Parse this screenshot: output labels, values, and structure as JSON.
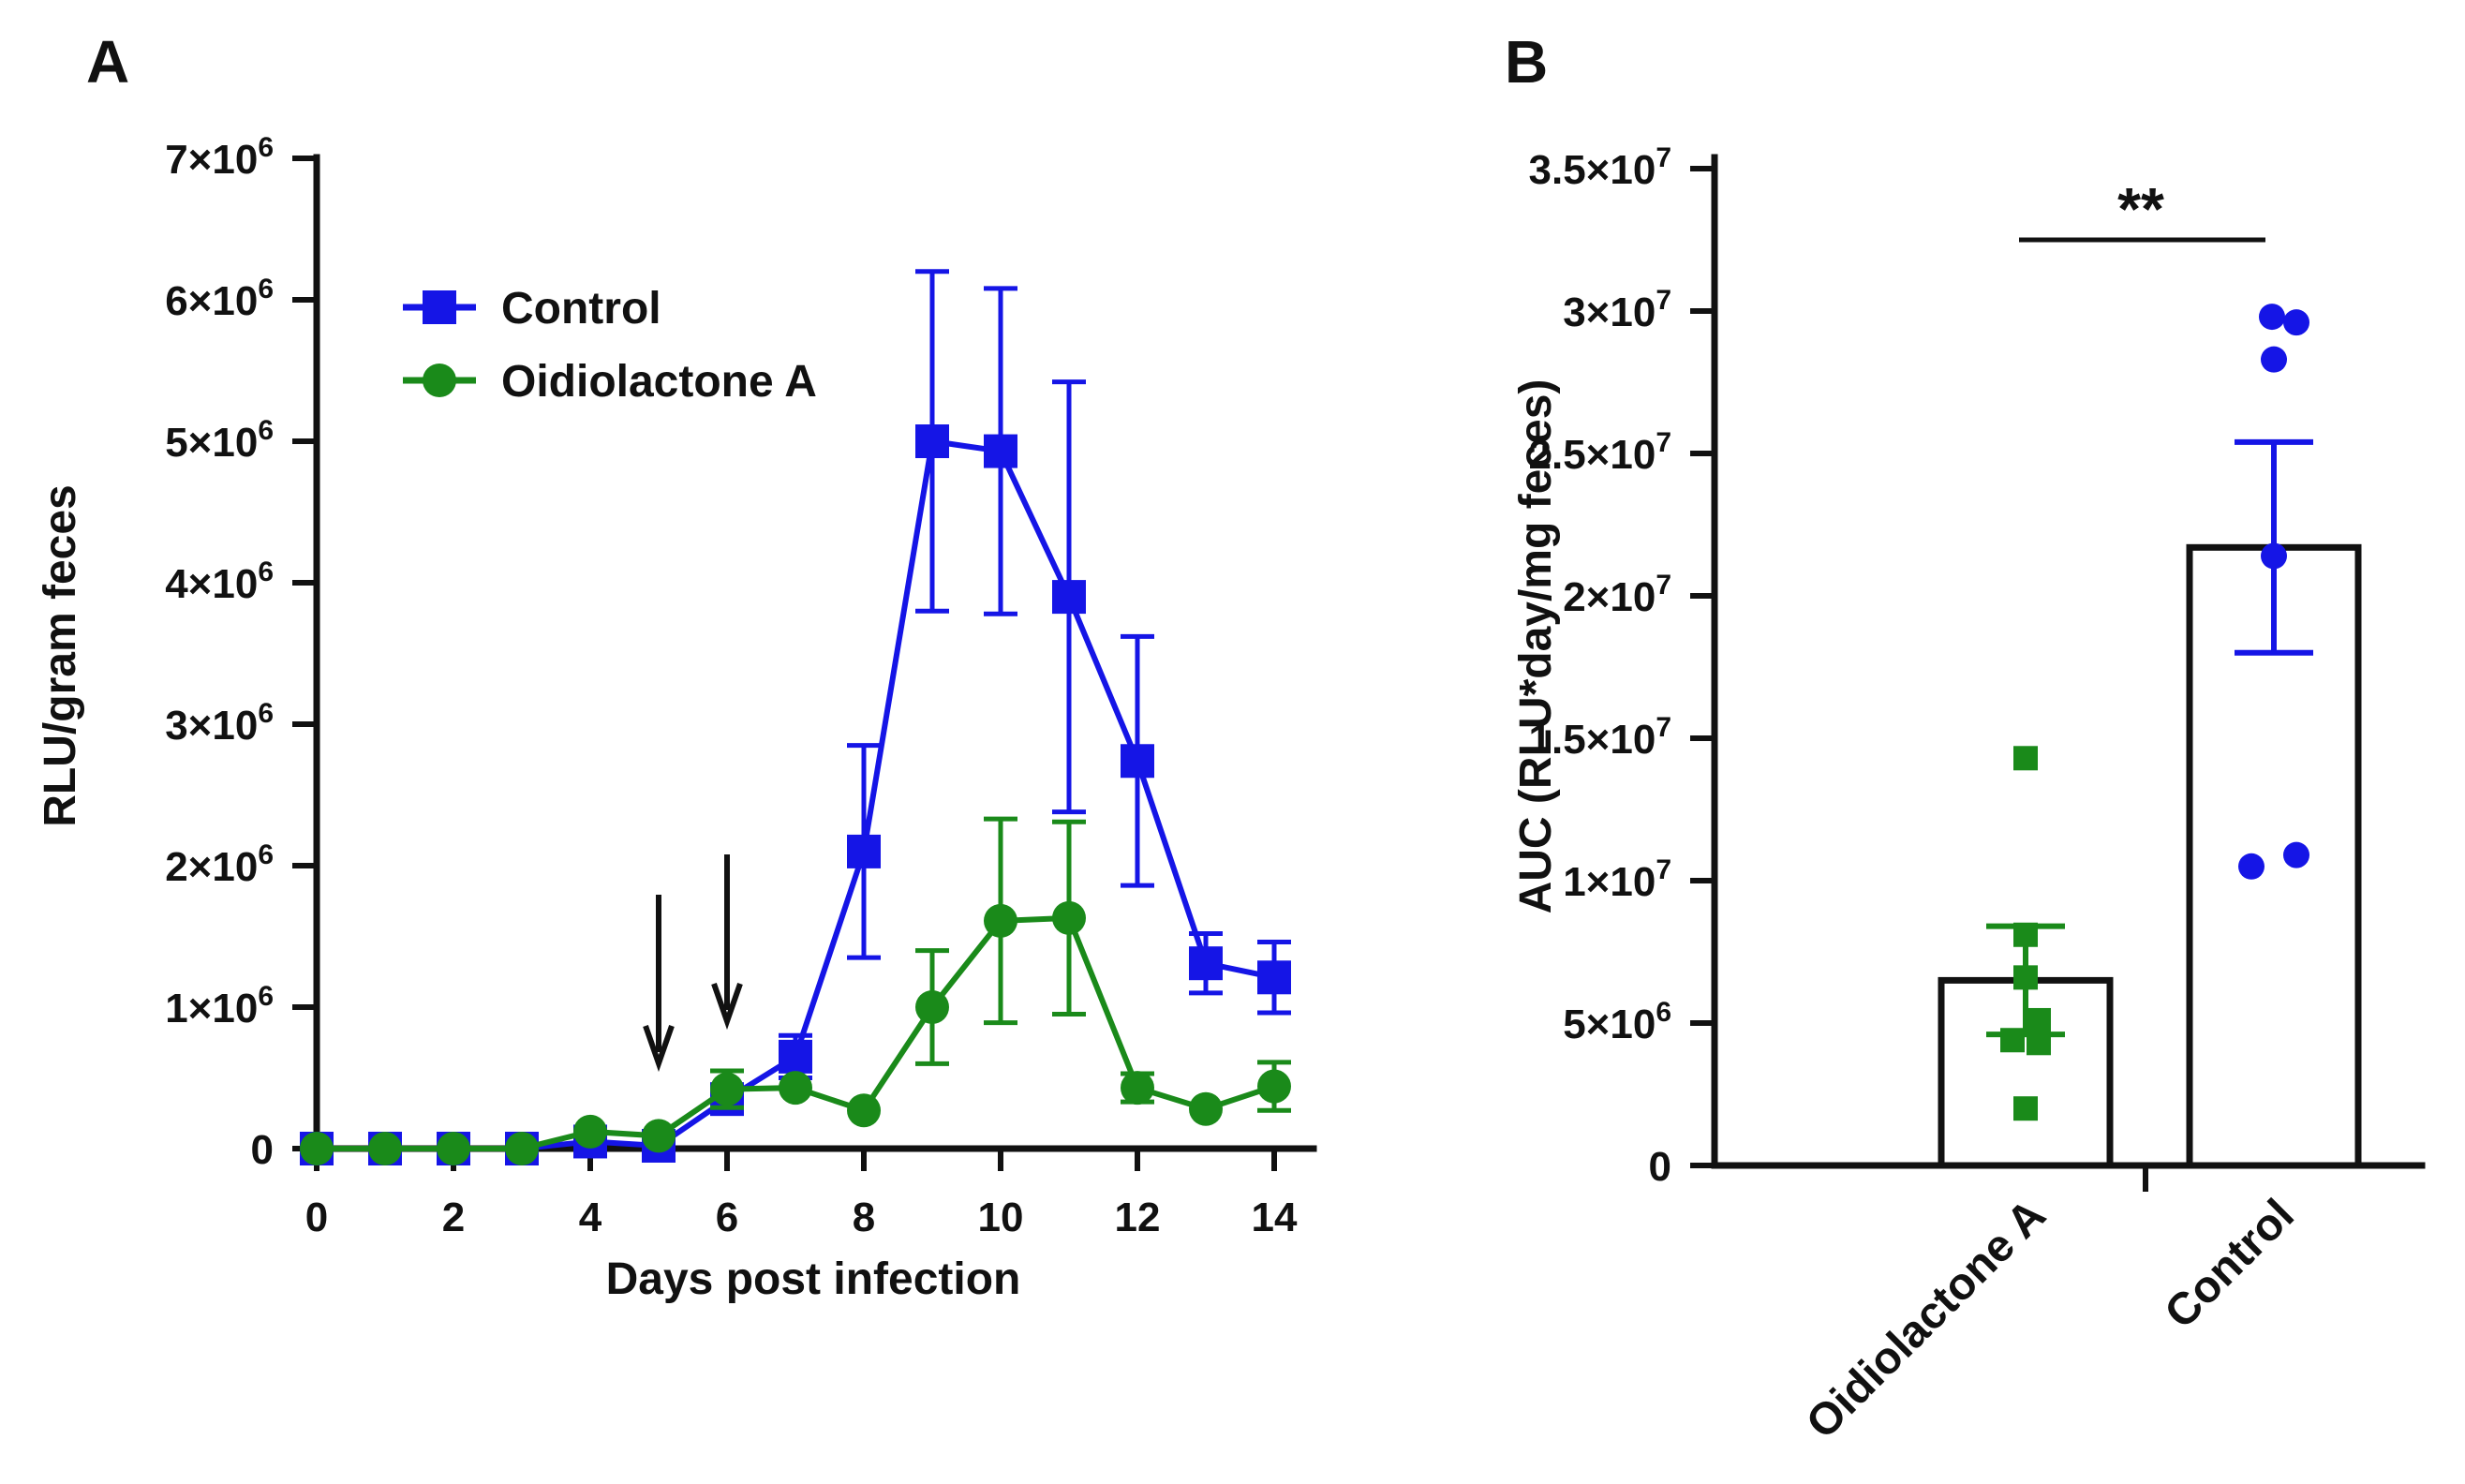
{
  "panels": {
    "a": {
      "letter": "A"
    },
    "b": {
      "letter": "B"
    }
  },
  "chart_data": [
    {
      "id": "A",
      "type": "line",
      "xlabel": "Days post infection",
      "ylabel": "RLU/gram feces",
      "xlim": [
        0,
        14
      ],
      "ylim": [
        0,
        7000000
      ],
      "xticks": [
        0,
        2,
        4,
        6,
        8,
        10,
        12,
        14
      ],
      "yticks": [
        {
          "value": 0,
          "label": "0"
        },
        {
          "value": 1000000,
          "base": "1×10",
          "exp": "6"
        },
        {
          "value": 2000000,
          "base": "2×10",
          "exp": "6"
        },
        {
          "value": 3000000,
          "base": "3×10",
          "exp": "6"
        },
        {
          "value": 4000000,
          "base": "4×10",
          "exp": "6"
        },
        {
          "value": 5000000,
          "base": "5×10",
          "exp": "6"
        },
        {
          "value": 6000000,
          "base": "6×10",
          "exp": "6"
        },
        {
          "value": 7000000,
          "base": "7×10",
          "exp": "6"
        }
      ],
      "grid": false,
      "legend_position": "top-left",
      "arrows_at_days": [
        5,
        6
      ],
      "series": [
        {
          "name": "Control",
          "color": "#1515e6",
          "marker": "square",
          "x": [
            0,
            1,
            2,
            3,
            4,
            5,
            6,
            7,
            8,
            9,
            10,
            11,
            12,
            13,
            14
          ],
          "y": [
            0,
            0,
            0,
            0,
            50000,
            20000,
            350000,
            650000,
            2100000,
            5000000,
            4930000,
            3900000,
            2740000,
            1310000,
            1210000
          ],
          "err": [
            0,
            0,
            0,
            0,
            0,
            0,
            0,
            150000,
            750000,
            1200000,
            1150000,
            1520000,
            880000,
            210000,
            250000
          ]
        },
        {
          "name": "Oidiolactone A",
          "color": "#1a8a1a",
          "marker": "circle",
          "x": [
            0,
            1,
            2,
            3,
            4,
            5,
            6,
            7,
            8,
            9,
            10,
            11,
            12,
            13,
            14
          ],
          "y": [
            0,
            0,
            0,
            0,
            120000,
            90000,
            420000,
            430000,
            270000,
            1000000,
            1610000,
            1630000,
            430000,
            280000,
            440000
          ],
          "err": [
            0,
            0,
            0,
            0,
            0,
            0,
            130000,
            0,
            0,
            400000,
            720000,
            680000,
            100000,
            0,
            170000
          ]
        }
      ]
    },
    {
      "id": "B",
      "type": "bar",
      "ylabel": "AUC (RLU*day/mg feces)",
      "ylim": [
        0,
        35000000
      ],
      "yticks": [
        {
          "value": 0,
          "label": "0"
        },
        {
          "value": 5000000,
          "base": "5×10",
          "exp": "6"
        },
        {
          "value": 10000000,
          "base": "1×10",
          "exp": "7"
        },
        {
          "value": 15000000,
          "base": "1.5×10",
          "exp": "7"
        },
        {
          "value": 20000000,
          "base": "2×10",
          "exp": "7"
        },
        {
          "value": 25000000,
          "base": "2.5×10",
          "exp": "7"
        },
        {
          "value": 30000000,
          "base": "3×10",
          "exp": "7"
        },
        {
          "value": 35000000,
          "base": "3.5×10",
          "exp": "7"
        }
      ],
      "categories": [
        "Oidiolactone A",
        "Control"
      ],
      "means": [
        6500000,
        21700000
      ],
      "sem": [
        1900000,
        3700000
      ],
      "colors": [
        "#1a8a1a",
        "#1515e6"
      ],
      "points": [
        [
          14300000,
          8100000,
          6600000,
          5100000,
          4400000,
          4300000,
          2000000
        ],
        [
          29800000,
          29600000,
          28300000,
          21400000,
          10900000,
          10500000
        ]
      ],
      "point_markers": [
        "square",
        "circle"
      ],
      "significance": "**"
    }
  ]
}
